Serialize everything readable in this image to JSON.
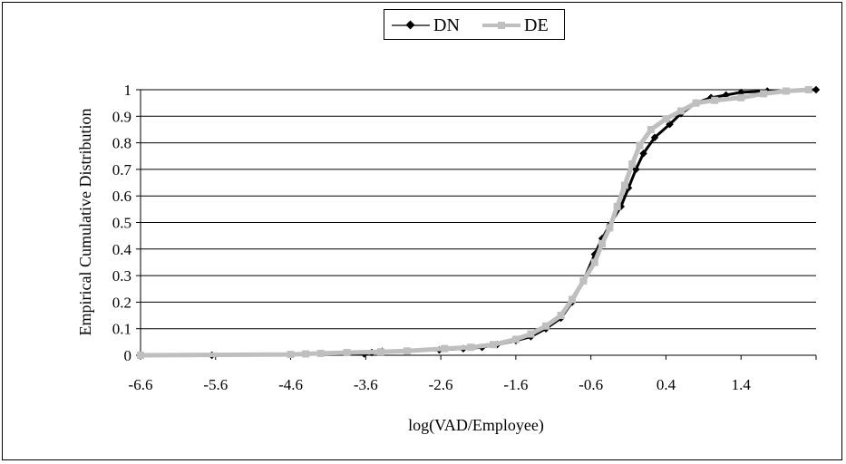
{
  "chart_data": {
    "type": "line",
    "title": "",
    "xlabel": "log(VAD/Employee)",
    "ylabel": "Empirical Cumulative Distribution",
    "xlim": [
      -6.6,
      2.4
    ],
    "ylim": [
      0,
      1
    ],
    "x_ticks": [
      "-6.6",
      "-5.6",
      "-4.6",
      "-3.6",
      "-2.6",
      "-1.6",
      "-0.6",
      "0.4",
      "1.4"
    ],
    "y_ticks": [
      "0",
      "0.1",
      "0.2",
      "0.3",
      "0.4",
      "0.5",
      "0.6",
      "0.7",
      "0.8",
      "0.9",
      "1"
    ],
    "grid": "horizontal",
    "legend_position": "top-center",
    "series": [
      {
        "name": "DN",
        "color": "#000000",
        "marker": "diamond",
        "points": [
          [
            -5.65,
            0.0
          ],
          [
            -3.62,
            0.005
          ],
          [
            -3.52,
            0.01
          ],
          [
            -3.38,
            0.015
          ],
          [
            -2.62,
            0.02
          ],
          [
            -2.3,
            0.025
          ],
          [
            -2.05,
            0.03
          ],
          [
            -1.85,
            0.04
          ],
          [
            -1.6,
            0.055
          ],
          [
            -1.4,
            0.07
          ],
          [
            -1.2,
            0.1
          ],
          [
            -1.0,
            0.14
          ],
          [
            -0.85,
            0.2
          ],
          [
            -0.7,
            0.28
          ],
          [
            -0.55,
            0.38
          ],
          [
            -0.45,
            0.44
          ],
          [
            -0.35,
            0.49
          ],
          [
            -0.2,
            0.56
          ],
          [
            -0.1,
            0.63
          ],
          [
            0.0,
            0.7
          ],
          [
            0.1,
            0.76
          ],
          [
            0.25,
            0.82
          ],
          [
            0.45,
            0.87
          ],
          [
            0.6,
            0.91
          ],
          [
            0.8,
            0.95
          ],
          [
            1.0,
            0.97
          ],
          [
            1.2,
            0.98
          ],
          [
            1.4,
            0.99
          ],
          [
            1.75,
            0.995
          ],
          [
            2.4,
            1.0
          ]
        ]
      },
      {
        "name": "DE",
        "color": "#bfbfbf",
        "marker": "square",
        "points": [
          [
            -6.6,
            0.0
          ],
          [
            -4.6,
            0.003
          ],
          [
            -4.4,
            0.005
          ],
          [
            -4.2,
            0.007
          ],
          [
            -3.85,
            0.01
          ],
          [
            -3.4,
            0.013
          ],
          [
            -3.05,
            0.016
          ],
          [
            -2.55,
            0.025
          ],
          [
            -2.2,
            0.03
          ],
          [
            -1.9,
            0.04
          ],
          [
            -1.6,
            0.06
          ],
          [
            -1.4,
            0.08
          ],
          [
            -1.2,
            0.11
          ],
          [
            -1.0,
            0.15
          ],
          [
            -0.85,
            0.21
          ],
          [
            -0.7,
            0.28
          ],
          [
            -0.55,
            0.35
          ],
          [
            -0.45,
            0.42
          ],
          [
            -0.35,
            0.48
          ],
          [
            -0.25,
            0.56
          ],
          [
            -0.15,
            0.64
          ],
          [
            -0.05,
            0.72
          ],
          [
            0.05,
            0.79
          ],
          [
            0.2,
            0.85
          ],
          [
            0.4,
            0.89
          ],
          [
            0.6,
            0.92
          ],
          [
            0.8,
            0.95
          ],
          [
            1.05,
            0.96
          ],
          [
            1.4,
            0.97
          ],
          [
            1.7,
            0.985
          ],
          [
            2.0,
            0.995
          ],
          [
            2.3,
            1.0
          ]
        ]
      }
    ]
  }
}
